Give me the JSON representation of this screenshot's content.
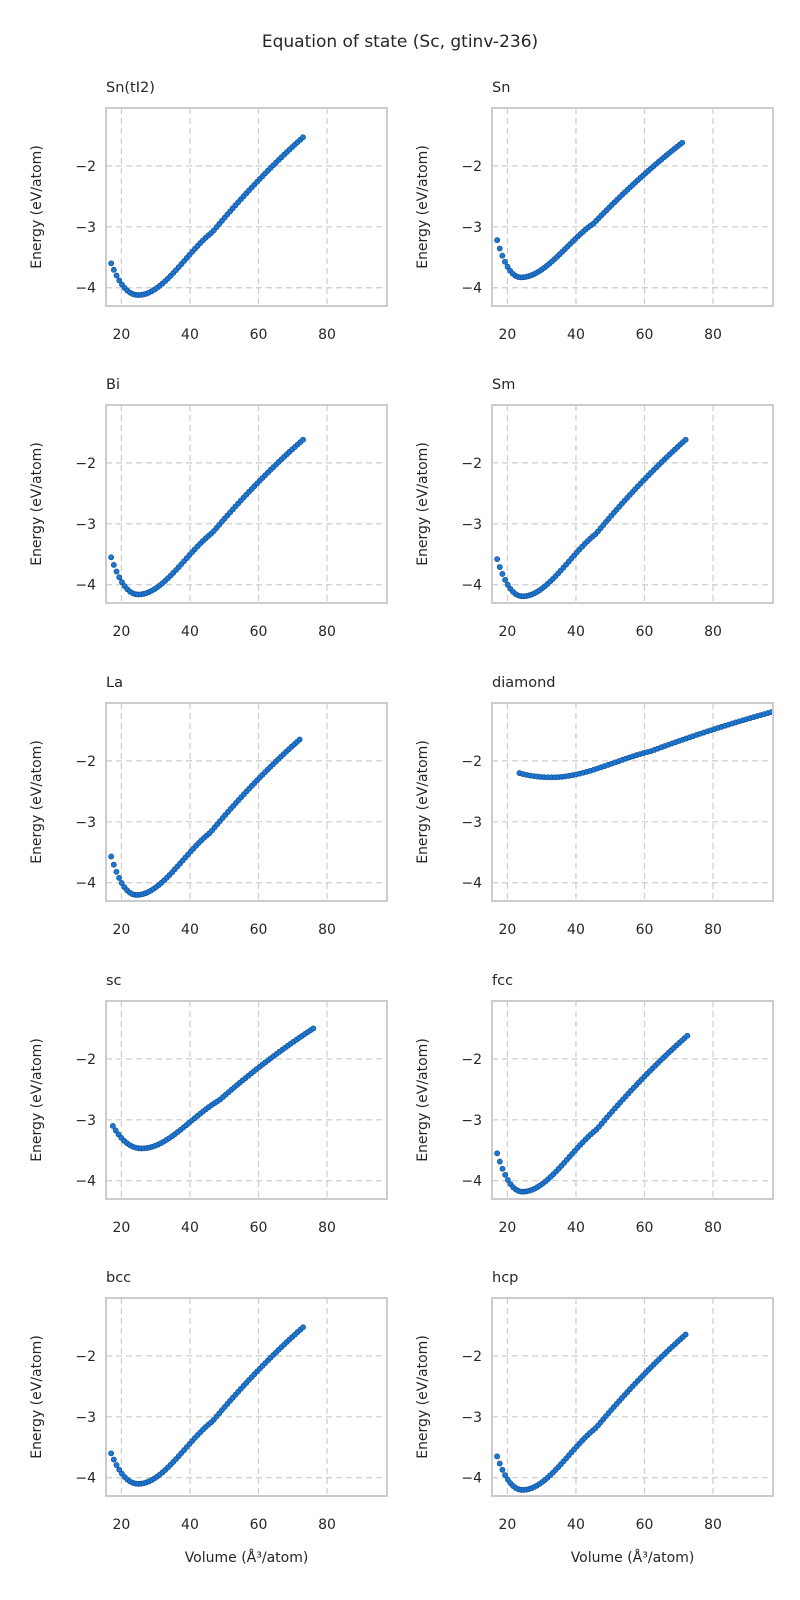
{
  "figure": {
    "suptitle": "Equation of state (Sc, gtinv-236)",
    "xlabel": "Volume (Å³/atom)",
    "ylabel": "Energy (eV/atom)",
    "xticks": [
      20,
      40,
      60,
      80
    ],
    "xtick_labels": [
      "20",
      "40",
      "60",
      "80"
    ],
    "yticks": [
      -4,
      -3,
      -2
    ],
    "ytick_labels": [
      "−4",
      "−3",
      "−2"
    ],
    "marker_color": "#1f77d4",
    "marker_edge_color": "#0b4a8a",
    "grid_color": "#cccccc"
  },
  "chart_data": [
    {
      "type": "scatter",
      "title": "Sn(tI2)",
      "xlim": [
        15.5,
        97.5
      ],
      "ylim": [
        -4.3,
        -1.05
      ],
      "grid": true,
      "e0": -4.12,
      "v0": 25,
      "e_start": -3.6,
      "v_start": 17,
      "v_end": 73,
      "e_end": -1.53
    },
    {
      "type": "scatter",
      "title": "Sn",
      "xlim": [
        15.5,
        97.5
      ],
      "ylim": [
        -4.3,
        -1.05
      ],
      "grid": true,
      "e0": -3.83,
      "v0": 24,
      "e_start": -3.22,
      "v_start": 17,
      "v_end": 71,
      "e_end": -1.62
    },
    {
      "type": "scatter",
      "title": "Bi",
      "xlim": [
        15.5,
        97.5
      ],
      "ylim": [
        -4.3,
        -1.05
      ],
      "grid": true,
      "e0": -4.16,
      "v0": 25,
      "e_start": -3.55,
      "v_start": 17,
      "v_end": 73,
      "e_end": -1.62
    },
    {
      "type": "scatter",
      "title": "Sm",
      "xlim": [
        15.5,
        97.5
      ],
      "ylim": [
        -4.3,
        -1.05
      ],
      "grid": true,
      "e0": -4.19,
      "v0": 24.5,
      "e_start": -3.58,
      "v_start": 17,
      "v_end": 72,
      "e_end": -1.62
    },
    {
      "type": "scatter",
      "title": "La",
      "xlim": [
        15.5,
        97.5
      ],
      "ylim": [
        -4.3,
        -1.05
      ],
      "grid": true,
      "e0": -4.2,
      "v0": 24.5,
      "e_start": -3.57,
      "v_start": 17,
      "v_end": 72,
      "e_end": -1.65
    },
    {
      "type": "scatter",
      "title": "diamond",
      "xlim": [
        15.5,
        97.5
      ],
      "ylim": [
        -4.3,
        -1.05
      ],
      "grid": true,
      "e0": -2.27,
      "v0": 33,
      "e_start": -2.2,
      "v_start": 23.5,
      "v_end": 97,
      "e_end": -1.2
    },
    {
      "type": "scatter",
      "title": "sc",
      "xlim": [
        15.5,
        97.5
      ],
      "ylim": [
        -4.3,
        -1.05
      ],
      "grid": true,
      "e0": -3.47,
      "v0": 26,
      "e_start": -3.1,
      "v_start": 17.5,
      "v_end": 76,
      "e_end": -1.5
    },
    {
      "type": "scatter",
      "title": "fcc",
      "xlim": [
        15.5,
        97.5
      ],
      "ylim": [
        -4.3,
        -1.05
      ],
      "grid": true,
      "e0": -4.18,
      "v0": 24.5,
      "e_start": -3.55,
      "v_start": 17,
      "v_end": 72.5,
      "e_end": -1.62
    },
    {
      "type": "scatter",
      "title": "bcc",
      "xlim": [
        15.5,
        97.5
      ],
      "ylim": [
        -4.3,
        -1.05
      ],
      "grid": true,
      "e0": -4.1,
      "v0": 25,
      "e_start": -3.6,
      "v_start": 17,
      "v_end": 73,
      "e_end": -1.53
    },
    {
      "type": "scatter",
      "title": "hcp",
      "xlim": [
        15.5,
        97.5
      ],
      "ylim": [
        -4.3,
        -1.05
      ],
      "grid": true,
      "e0": -4.2,
      "v0": 24.5,
      "e_start": -3.65,
      "v_start": 17,
      "v_end": 72,
      "e_end": -1.65
    }
  ]
}
